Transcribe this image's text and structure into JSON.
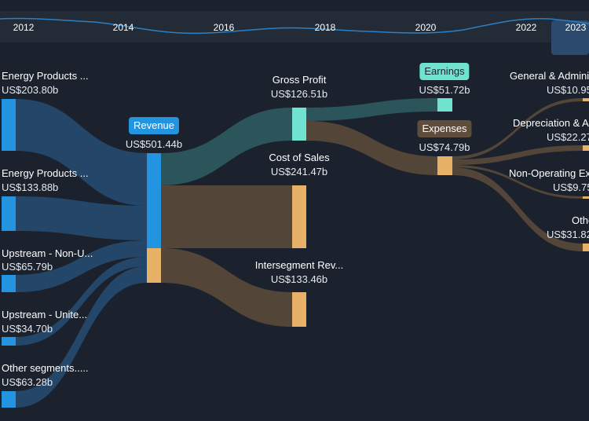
{
  "timeline": {
    "years": [
      "2012",
      "2014",
      "2016",
      "2018",
      "2020",
      "2022",
      "2023"
    ],
    "selected": "2023"
  },
  "colors": {
    "background": "#1b222d",
    "revenue": "#2394df",
    "expense": "#e7b267",
    "profit": "#6fe2d0",
    "flow_blue": "#264e74",
    "flow_brown": "#5a4a3a",
    "flow_teal": "#2e5a60"
  },
  "chart_data": {
    "type": "sankey",
    "nodes": {
      "seg1": {
        "label": "Energy Products ...",
        "value": "US$203.80b"
      },
      "seg2": {
        "label": "Energy Products ...",
        "value": "US$133.88b"
      },
      "seg3": {
        "label": "Upstream - Non-U...",
        "value": "US$65.79b"
      },
      "seg4": {
        "label": "Upstream - Unite...",
        "value": "US$34.70b"
      },
      "seg5": {
        "label": "Other segments.....",
        "value": "US$63.28b"
      },
      "revenue": {
        "label": "Revenue",
        "value": "US$501.44b"
      },
      "gross_profit": {
        "label": "Gross Profit",
        "value": "US$126.51b"
      },
      "cost_of_sales": {
        "label": "Cost of Sales",
        "value": "US$241.47b"
      },
      "intersegment": {
        "label": "Intersegment Rev...",
        "value": "US$133.46b"
      },
      "earnings": {
        "label": "Earnings",
        "value": "US$51.72b"
      },
      "expenses": {
        "label": "Expenses",
        "value": "US$74.79b"
      },
      "gen_admin": {
        "label": "General & Admini",
        "value": "US$10.95"
      },
      "depreciation": {
        "label": "Depreciation & A",
        "value": "US$22.27"
      },
      "non_operating": {
        "label": "Non-Operating Ex",
        "value": "US$9.75"
      },
      "other": {
        "label": "Othe",
        "value": "US$31.82"
      }
    },
    "links": [
      {
        "source": "seg1",
        "target": "revenue",
        "value": 203.8
      },
      {
        "source": "seg2",
        "target": "revenue",
        "value": 133.88
      },
      {
        "source": "seg3",
        "target": "revenue",
        "value": 65.79
      },
      {
        "source": "seg4",
        "target": "revenue",
        "value": 34.7
      },
      {
        "source": "seg5",
        "target": "revenue",
        "value": 63.28
      },
      {
        "source": "revenue",
        "target": "gross_profit",
        "value": 126.51
      },
      {
        "source": "revenue",
        "target": "cost_of_sales",
        "value": 241.47
      },
      {
        "source": "revenue",
        "target": "intersegment",
        "value": 133.46
      },
      {
        "source": "gross_profit",
        "target": "earnings",
        "value": 51.72
      },
      {
        "source": "gross_profit",
        "target": "expenses",
        "value": 74.79
      },
      {
        "source": "expenses",
        "target": "gen_admin",
        "value": 10.95
      },
      {
        "source": "expenses",
        "target": "depreciation",
        "value": 22.27
      },
      {
        "source": "expenses",
        "target": "non_operating",
        "value": 9.75
      },
      {
        "source": "expenses",
        "target": "other",
        "value": 31.82
      }
    ]
  }
}
